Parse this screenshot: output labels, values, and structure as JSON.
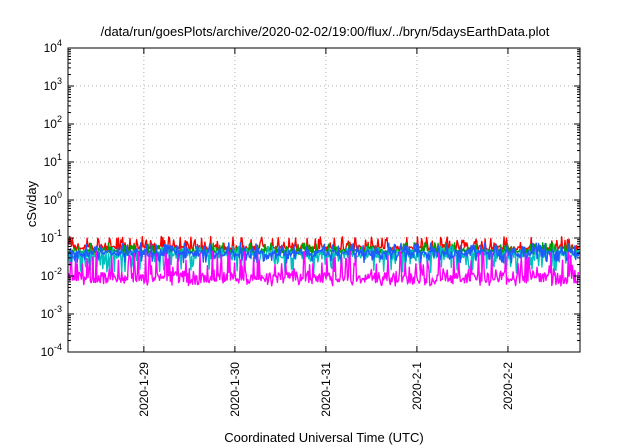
{
  "chart_data": {
    "type": "line",
    "title": "/data/run/goesPlots/archive/2020-02-02/19:00/flux/../bryn/5daysEarthData.plot",
    "xlabel": "Coordinated Universal Time (UTC)",
    "ylabel": "cSv/day",
    "yscale": "log",
    "ylim": [
      0.0001,
      10000
    ],
    "xlim": [
      "2020-01-28 04:00",
      "2020-02-02 19:00"
    ],
    "grid": true,
    "y_ticks": [
      {
        "base": "10",
        "exp": "-4"
      },
      {
        "base": "10",
        "exp": "-3"
      },
      {
        "base": "10",
        "exp": "-2"
      },
      {
        "base": "10",
        "exp": "-1"
      },
      {
        "base": "10",
        "exp": "0"
      },
      {
        "base": "10",
        "exp": "1"
      },
      {
        "base": "10",
        "exp": "2"
      },
      {
        "base": "10",
        "exp": "3"
      },
      {
        "base": "10",
        "exp": "4"
      }
    ],
    "x_ticks": [
      "2020-1-29",
      "2020-1-30",
      "2020-1-31",
      "2020-2-1",
      "2020-2-2"
    ],
    "series": [
      {
        "color": "#ff0000",
        "typical": 0.055,
        "spread": [
          0.045,
          0.11
        ]
      },
      {
        "color": "#00a000",
        "typical": 0.045,
        "spread": [
          0.035,
          0.075
        ]
      },
      {
        "color": "#00c0c0",
        "typical": 0.035,
        "spread": [
          0.012,
          0.06
        ]
      },
      {
        "color": "#1e5bff",
        "typical": 0.04,
        "spread": [
          0.022,
          0.075
        ]
      },
      {
        "color": "#ff00ff",
        "typical": 0.009,
        "spread": [
          0.0055,
          0.045
        ]
      }
    ]
  }
}
